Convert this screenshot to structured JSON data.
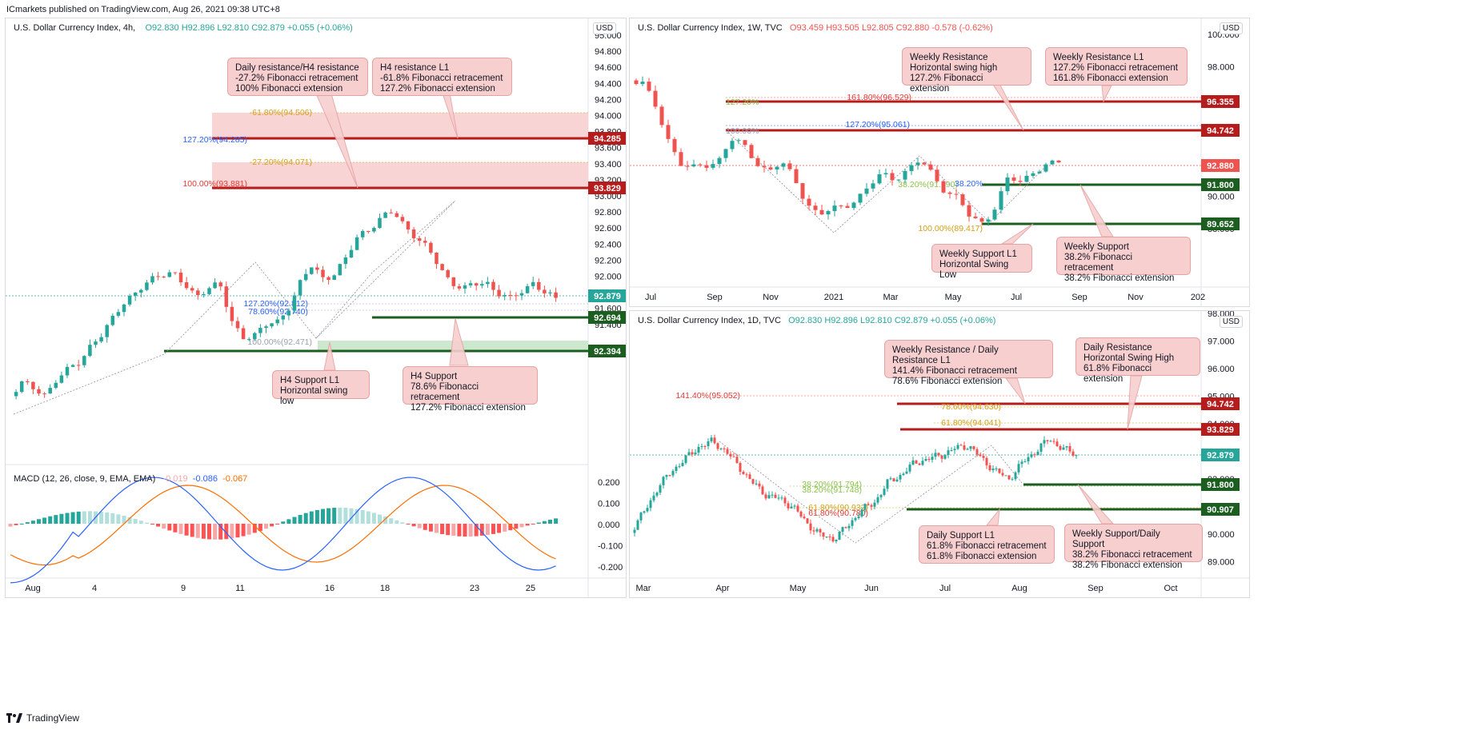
{
  "publisher": "ICmarkets published on TradingView.com, Aug 26, 2021 09:38 UTC+8",
  "brand": "TradingView",
  "currency": "USD",
  "colors": {
    "up": "#26a69a",
    "down": "#ef5350",
    "resistance": "#b71c1c",
    "support": "#1b5e20",
    "callout": "#f8cfcf",
    "macd": "#2962ff",
    "signal": "#ff6d00"
  },
  "left": {
    "title": "U.S. Dollar Currency Index, 4h,",
    "ohlc": {
      "o": "O92.830",
      "h": "H92.896",
      "l": "L92.810",
      "c": "C92.879",
      "chg": "+0.055 (+0.06%)"
    },
    "yticks": [
      "95.000",
      "94.800",
      "94.600",
      "94.400",
      "94.200",
      "94.000",
      "93.800",
      "93.600",
      "93.400",
      "93.200",
      "93.000",
      "92.800",
      "92.600",
      "92.400",
      "92.200",
      "92.000",
      "91.800",
      "91.600",
      "91.400"
    ],
    "xticks": [
      "Aug",
      "4",
      "9",
      "11",
      "16",
      "18",
      "23",
      "25"
    ],
    "price_tags": [
      {
        "label": "94.285",
        "kind": "resistance"
      },
      {
        "label": "93.829",
        "kind": "resistance"
      },
      {
        "label": "92.879",
        "kind": "last"
      },
      {
        "label": "92.694",
        "kind": "support"
      },
      {
        "label": "92.394",
        "kind": "support"
      }
    ],
    "fib_labels": [
      "-61.80%(94.506)",
      "127.20%(94.285)",
      "-27.20%(94.071)",
      "100.00%(93.881)",
      "127.20%(92.812)",
      "78.60%(92.740)",
      "100.00%(92.471)"
    ],
    "callouts": [
      "Daily resistance/H4 resistance\n-27.2% Fibonacci retracement\n100% Fibonacci extension",
      "H4 resistance L1\n-61.8% Fibonacci retracement\n127.2% Fibonacci extension",
      "H4 Support L1\nHorizontal swing low",
      "H4 Support\n78.6% Fibonacci retracement\n127.2% Fibonacci extension"
    ],
    "macd": {
      "title": "MACD (12, 26, close, 9, EMA, EMA)",
      "values": [
        "-0.019",
        "-0.086",
        "-0.067"
      ],
      "yticks": [
        "0.200",
        "0.100",
        "0.000",
        "-0.100",
        "-0.200"
      ]
    }
  },
  "weekly": {
    "title": "U.S. Dollar Currency Index, 1W, TVC",
    "ohlc": {
      "o": "O93.459",
      "h": "H93.505",
      "l": "L92.805",
      "c": "C92.880",
      "chg": "-0.578 (-0.62%)"
    },
    "yticks": [
      "100.000",
      "98.000",
      "96.000",
      "94.000",
      "92.000",
      "90.000",
      "88.000"
    ],
    "xticks": [
      "Jul",
      "Sep",
      "Nov",
      "2021",
      "Mar",
      "May",
      "Jul",
      "Sep",
      "Nov",
      "202"
    ],
    "price_tags": [
      {
        "label": "96.355",
        "kind": "resistance"
      },
      {
        "label": "94.742",
        "kind": "resistance"
      },
      {
        "label": "92.880",
        "kind": "last"
      },
      {
        "label": "91.800",
        "kind": "support"
      },
      {
        "label": "89.652",
        "kind": "support"
      }
    ],
    "fib_labels": [
      "127.20%",
      "161.80%(96.529)",
      "100.00%",
      "127.20%(95.061)",
      "38.20%(91.790)",
      "38.20%",
      "100.00%(89.417)"
    ],
    "callouts": [
      "Weekly Resistance\nHorizontal swing high\n127.2% Fibonacci extension",
      "Weekly Resistance L1\n127.2% Fibonacci retracement\n161.8% Fibonacci extension",
      "Weekly Support L1\nHorizontal Swing Low",
      "Weekly Support\n38.2% Fibonacci retracement\n38.2% Fibonacci extension"
    ]
  },
  "daily": {
    "title": "U.S. Dollar Currency Index, 1D, TVC",
    "ohlc": {
      "o": "O92.830",
      "h": "H92.896",
      "l": "L92.810",
      "c": "C92.879",
      "chg": "+0.055 (+0.06%)"
    },
    "yticks": [
      "98.000",
      "97.000",
      "96.000",
      "95.000",
      "94.000",
      "93.000",
      "92.000",
      "91.000",
      "90.000",
      "89.000"
    ],
    "xticks": [
      "Mar",
      "Apr",
      "May",
      "Jun",
      "Jul",
      "Aug",
      "Sep",
      "Oct"
    ],
    "price_tags": [
      {
        "label": "94.742",
        "kind": "resistance"
      },
      {
        "label": "93.829",
        "kind": "resistance"
      },
      {
        "label": "92.879",
        "kind": "last"
      },
      {
        "label": "91.800",
        "kind": "support"
      },
      {
        "label": "90.907",
        "kind": "support"
      }
    ],
    "fib_labels": [
      "141.40%(95.052)",
      "78.60%(94.630)",
      "61.80%(94.041)",
      "38.20%(91.794)",
      "38.20%(91.748)",
      "61.80%(90.932)",
      "61.80%(90.780)"
    ],
    "callouts": [
      "Weekly Resistance / Daily Resistance L1\n141.4% Fibonacci retracement\n78.6% Fibonacci extension",
      "Daily Resistance\nHorizontal Swing High\n61.8% Fibonacci extension",
      "Daily Support L1\n61.8% Fibonacci retracement\n61.8% Fibonacci extension",
      "Weekly Support/Daily Support\n38.2% Fibonacci retracement\n38.2% Fibonacci extension"
    ]
  }
}
